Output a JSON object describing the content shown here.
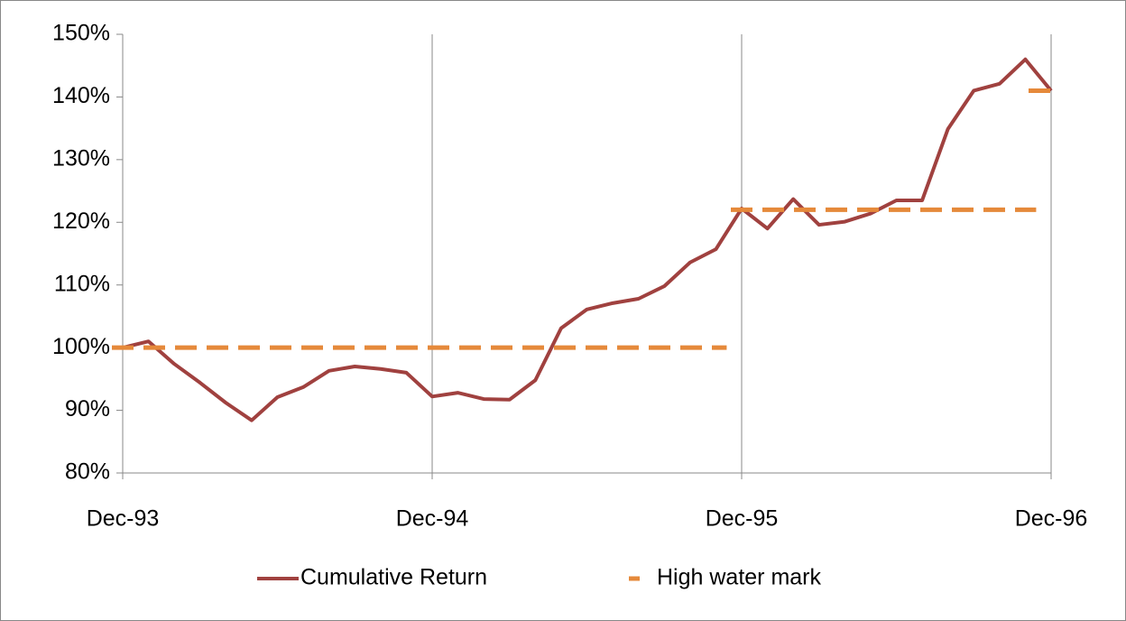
{
  "chart_data": {
    "type": "line",
    "categories": [
      "Dec-93",
      null,
      null,
      null,
      null,
      null,
      null,
      null,
      null,
      null,
      null,
      null,
      "Dec-94",
      null,
      null,
      null,
      null,
      null,
      null,
      null,
      null,
      null,
      null,
      null,
      "Dec-95",
      null,
      null,
      null,
      null,
      null,
      null,
      null,
      null,
      null,
      null,
      null,
      "Dec-96"
    ],
    "series": [
      {
        "name": "Cumulative Return",
        "color": "#a0413f",
        "dashed": false,
        "values": [
          100,
          101,
          97.4,
          94.4,
          91.2,
          88.4,
          92.1,
          93.7,
          96.3,
          97.0,
          96.6,
          96.0,
          92.2,
          92.8,
          91.8,
          91.7,
          94.8,
          103.1,
          106.1,
          107.1,
          107.8,
          109.8,
          113.6,
          115.7,
          122.2,
          119.0,
          123.7,
          119.6,
          120.1,
          121.4,
          123.5,
          123.5,
          134.9,
          141.0,
          142.1,
          146.0,
          141.0
        ]
      },
      {
        "name": "High water mark",
        "color": "#e5893a",
        "dashed": true,
        "values": [
          100,
          100,
          100,
          100,
          100,
          100,
          100,
          100,
          100,
          100,
          100,
          100,
          100,
          100,
          100,
          100,
          100,
          100,
          100,
          100,
          100,
          100,
          100,
          100,
          122,
          122,
          122,
          122,
          122,
          122,
          122,
          122,
          122,
          122,
          122,
          122,
          141
        ]
      }
    ],
    "ylim": [
      80,
      150
    ],
    "yticks": [
      {
        "value": 80,
        "label": "80%"
      },
      {
        "value": 90,
        "label": "90%"
      },
      {
        "value": 100,
        "label": "100%"
      },
      {
        "value": 110,
        "label": "110%"
      },
      {
        "value": 120,
        "label": "120%"
      },
      {
        "value": 130,
        "label": "130%"
      },
      {
        "value": 140,
        "label": "140%"
      },
      {
        "value": 150,
        "label": "150%"
      }
    ],
    "grid": "x",
    "legend": "bottom"
  }
}
